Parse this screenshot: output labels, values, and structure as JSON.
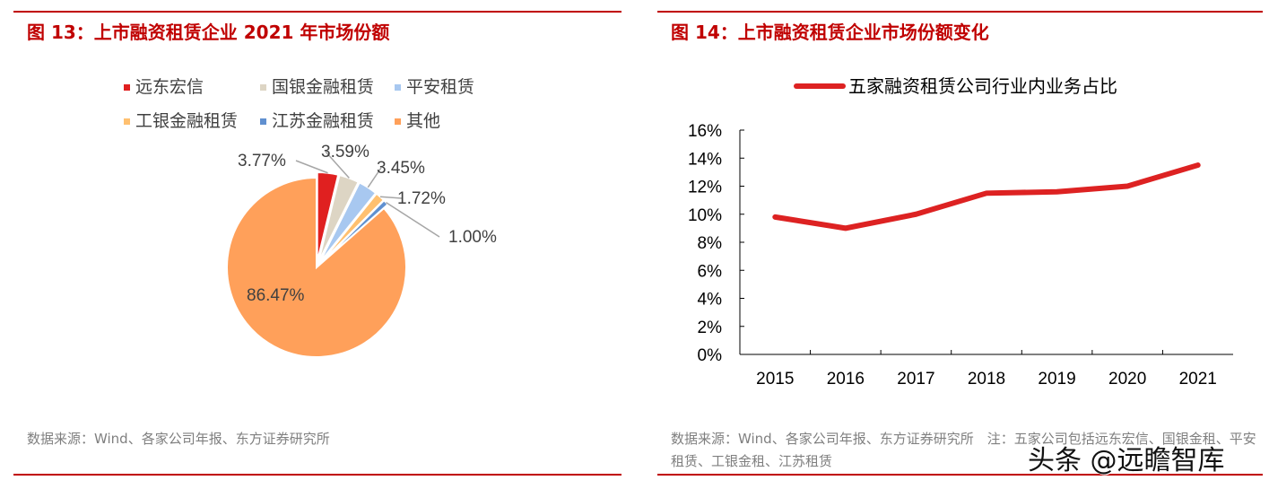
{
  "chart_data": [
    {
      "type": "pie",
      "title": "图 13：上市融资租赁企业 2021 年市场份额",
      "slices": [
        {
          "label": "远东宏信",
          "value": 3.77,
          "display": "3.77%",
          "color": "#e02020"
        },
        {
          "label": "国银金融租赁",
          "value": 3.59,
          "display": "3.59%",
          "color": "#ddd5c4"
        },
        {
          "label": "平安租赁",
          "value": 3.45,
          "display": "3.45%",
          "color": "#a8c8f0"
        },
        {
          "label": "工银金融租赁",
          "value": 1.72,
          "display": "1.72%",
          "color": "#ffc070"
        },
        {
          "label": "江苏金融租赁",
          "value": 1.0,
          "display": "1.00%",
          "color": "#6090d0"
        },
        {
          "label": "其他",
          "value": 86.47,
          "display": "86.47%",
          "color": "#ffa05a"
        }
      ],
      "legend": "top",
      "source": "数据来源：Wind、各家公司年报、东方证券研究所"
    },
    {
      "type": "line",
      "title": "图 14：上市融资租赁企业市场份额变化",
      "categories": [
        "2015",
        "2016",
        "2017",
        "2018",
        "2019",
        "2020",
        "2021"
      ],
      "series": [
        {
          "name": "五家融资租赁公司行业内业务占比",
          "values": [
            9.8,
            9.0,
            10.0,
            11.5,
            11.6,
            12.0,
            13.5
          ],
          "color": "#dd2222"
        }
      ],
      "ylim": [
        0,
        16
      ],
      "yticks": [
        "0%",
        "2%",
        "4%",
        "6%",
        "8%",
        "10%",
        "12%",
        "14%",
        "16%"
      ],
      "grid": false,
      "legend": "top",
      "source": "数据来源：Wind、各家公司年报、东方证券研究所　注：五家公司包括远东宏信、国银金租、平安租赁、工银金租、江苏租赁"
    }
  ],
  "watermark": "头条 @远瞻智库"
}
